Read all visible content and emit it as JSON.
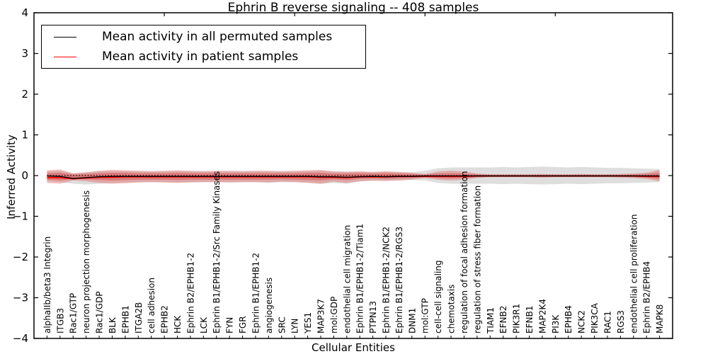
{
  "title": "Ephrin B reverse signaling -- 408 samples",
  "axes": {
    "xlabel": "Cellular Entities",
    "ylabel": "Inferred Activity",
    "ytick_values": [
      4,
      3,
      2,
      1,
      0,
      -1,
      -2,
      -3,
      -4
    ],
    "ytick_labels": [
      "4",
      "3",
      "2",
      "1",
      "0",
      "−1",
      "−2",
      "−3",
      "−4"
    ]
  },
  "legend": {
    "entries": [
      {
        "label": "Mean activity in all permuted samples",
        "color": "#000000"
      },
      {
        "label": "Mean activity in patient samples",
        "color": "#ff0000"
      }
    ]
  },
  "chart_data": {
    "type": "line",
    "title": "Ephrin B reverse signaling -- 408 samples",
    "xlabel": "Cellular Entities",
    "ylabel": "Inferred Activity",
    "ylim": [
      -4,
      4
    ],
    "grid": false,
    "legend_position": "upper left",
    "zero_line": 0,
    "top_axis_tick_positions": [
      10,
      20,
      30,
      40
    ],
    "categories": [
      "alphaIIb/beta3 Integrin",
      "ITGB3",
      "Rac1/GTP",
      "neuron projection morphogenesis",
      "Rac1/GDP",
      "BLK",
      "EPHB1",
      "ITGA2B",
      "cell adhesion",
      "EPHB2",
      "HCK",
      "Ephrin B2/EPHB1-2",
      "LCK",
      "Ephrin B1/EPHB1-2/Src Family Kinases",
      "FYN",
      "FGR",
      "Ephrin B1/EPHB1-2",
      "angiogenesis",
      "SRC",
      "LYN",
      "YES1",
      "MAP3K7",
      "mol:GDP",
      "endothelial cell migration",
      "Ephrin B1/EPHB1-2/Tiam1",
      "PTPN13",
      "Ephrin B1/EPHB1-2/NCK2",
      "Ephrin B1/EPHB1-2/RGS3",
      "DNM1",
      "mol:GTP",
      "cell-cell signaling",
      "chemotaxis",
      "regulation of focal adhesion formation",
      "regulation of stress fiber formation",
      "TIAM1",
      "EFNB2",
      "PIK3R1",
      "EFNB1",
      "MAP2K4",
      "PI3K",
      "EPHB4",
      "NCK2",
      "PIK3CA",
      "RAC1",
      "RGS3",
      "endothelial cell proliferation",
      "Ephrin B2/EPHB4",
      "MAPK8"
    ],
    "series": [
      {
        "name": "Mean activity in all permuted samples",
        "color": "#000000",
        "values": [
          -0.01,
          -0.02,
          -0.07,
          -0.05,
          -0.03,
          -0.02,
          -0.02,
          -0.02,
          -0.02,
          -0.02,
          -0.02,
          -0.02,
          -0.02,
          -0.02,
          -0.02,
          -0.02,
          -0.02,
          -0.02,
          -0.02,
          -0.02,
          -0.02,
          -0.03,
          -0.03,
          -0.04,
          -0.03,
          -0.02,
          -0.03,
          -0.02,
          -0.02,
          -0.01,
          -0.01,
          -0.01,
          -0.01,
          -0.01,
          -0.01,
          -0.01,
          -0.01,
          -0.01,
          -0.01,
          -0.01,
          -0.01,
          -0.01,
          -0.01,
          -0.01,
          -0.01,
          -0.01,
          -0.01,
          -0.01
        ]
      },
      {
        "name": "Mean activity in patient samples",
        "color": "#ff0000",
        "values": [
          -0.05,
          -0.05,
          -0.08,
          -0.06,
          -0.04,
          -0.04,
          -0.03,
          -0.03,
          -0.03,
          -0.03,
          -0.03,
          -0.03,
          -0.03,
          -0.03,
          -0.03,
          -0.03,
          -0.03,
          -0.03,
          -0.03,
          -0.03,
          -0.03,
          -0.04,
          -0.04,
          -0.05,
          -0.03,
          -0.03,
          -0.03,
          -0.02,
          -0.02,
          -0.02,
          -0.02,
          -0.02,
          -0.02,
          -0.01,
          -0.01,
          -0.01,
          -0.01,
          -0.01,
          -0.01,
          -0.01,
          -0.01,
          -0.01,
          -0.01,
          -0.01,
          -0.01,
          -0.01,
          -0.02,
          -0.02
        ]
      }
    ],
    "bands": [
      {
        "name": "permuted samples range",
        "color": "rgba(125,125,125,0.25)",
        "upper": [
          0.1,
          0.12,
          0.05,
          0.08,
          0.1,
          0.11,
          0.11,
          0.1,
          0.1,
          0.1,
          0.11,
          0.1,
          0.1,
          0.1,
          0.1,
          0.1,
          0.1,
          0.1,
          0.1,
          0.1,
          0.11,
          0.12,
          0.1,
          0.1,
          0.09,
          0.08,
          0.09,
          0.08,
          0.08,
          0.12,
          0.18,
          0.2,
          0.2,
          0.2,
          0.2,
          0.21,
          0.2,
          0.21,
          0.22,
          0.21,
          0.2,
          0.21,
          0.2,
          0.19,
          0.19,
          0.18,
          0.17,
          0.16
        ],
        "lower": [
          -0.14,
          -0.16,
          -0.2,
          -0.22,
          -0.2,
          -0.18,
          -0.17,
          -0.16,
          -0.16,
          -0.16,
          -0.17,
          -0.16,
          -0.16,
          -0.16,
          -0.16,
          -0.16,
          -0.16,
          -0.17,
          -0.16,
          -0.16,
          -0.17,
          -0.2,
          -0.18,
          -0.2,
          -0.14,
          -0.13,
          -0.13,
          -0.12,
          -0.11,
          -0.12,
          -0.18,
          -0.2,
          -0.2,
          -0.2,
          -0.2,
          -0.21,
          -0.2,
          -0.21,
          -0.22,
          -0.21,
          -0.2,
          -0.21,
          -0.2,
          -0.19,
          -0.19,
          -0.18,
          -0.17,
          -0.16
        ]
      },
      {
        "name": "patient samples outer band",
        "color": "rgba(222,45,45,0.30)",
        "upper": [
          0.13,
          0.15,
          0.06,
          0.08,
          0.12,
          0.14,
          0.13,
          0.12,
          0.11,
          0.12,
          0.13,
          0.12,
          0.11,
          0.12,
          0.12,
          0.11,
          0.12,
          0.12,
          0.11,
          0.12,
          0.13,
          0.14,
          0.1,
          0.09,
          0.11,
          0.09,
          0.11,
          0.09,
          0.07,
          0.04,
          0.1,
          0.12,
          0.1,
          0.05,
          0.03,
          0.03,
          0.03,
          0.03,
          0.04,
          0.03,
          0.03,
          0.04,
          0.03,
          0.03,
          0.04,
          0.05,
          0.07,
          0.14
        ],
        "lower": [
          -0.18,
          -0.2,
          -0.12,
          -0.14,
          -0.18,
          -0.2,
          -0.19,
          -0.17,
          -0.16,
          -0.17,
          -0.18,
          -0.17,
          -0.16,
          -0.16,
          -0.17,
          -0.16,
          -0.16,
          -0.17,
          -0.15,
          -0.16,
          -0.18,
          -0.2,
          -0.15,
          -0.18,
          -0.14,
          -0.12,
          -0.13,
          -0.12,
          -0.1,
          -0.06,
          -0.1,
          -0.12,
          -0.1,
          -0.06,
          -0.04,
          -0.04,
          -0.04,
          -0.04,
          -0.05,
          -0.04,
          -0.04,
          -0.04,
          -0.04,
          -0.04,
          -0.05,
          -0.06,
          -0.08,
          -0.14
        ]
      },
      {
        "name": "patient samples inner band",
        "color": "rgba(222,45,45,0.38)",
        "upper": [
          0.06,
          0.07,
          0.03,
          0.04,
          0.06,
          0.07,
          0.07,
          0.06,
          0.06,
          0.06,
          0.07,
          0.06,
          0.06,
          0.06,
          0.06,
          0.06,
          0.06,
          0.06,
          0.06,
          0.06,
          0.07,
          0.07,
          0.05,
          0.05,
          0.06,
          0.05,
          0.06,
          0.05,
          0.04,
          0.02,
          0.05,
          0.06,
          0.05,
          0.03,
          0.02,
          0.02,
          0.02,
          0.02,
          0.02,
          0.02,
          0.02,
          0.02,
          0.02,
          0.02,
          0.02,
          0.03,
          0.04,
          0.07
        ],
        "lower": [
          -0.1,
          -0.12,
          -0.08,
          -0.09,
          -0.11,
          -0.12,
          -0.11,
          -0.1,
          -0.1,
          -0.1,
          -0.11,
          -0.1,
          -0.1,
          -0.1,
          -0.1,
          -0.1,
          -0.1,
          -0.1,
          -0.09,
          -0.1,
          -0.11,
          -0.12,
          -0.09,
          -0.11,
          -0.08,
          -0.07,
          -0.08,
          -0.07,
          -0.06,
          -0.04,
          -0.06,
          -0.07,
          -0.06,
          -0.04,
          -0.03,
          -0.03,
          -0.03,
          -0.03,
          -0.03,
          -0.03,
          -0.03,
          -0.03,
          -0.03,
          -0.03,
          -0.03,
          -0.04,
          -0.05,
          -0.08
        ]
      }
    ]
  }
}
